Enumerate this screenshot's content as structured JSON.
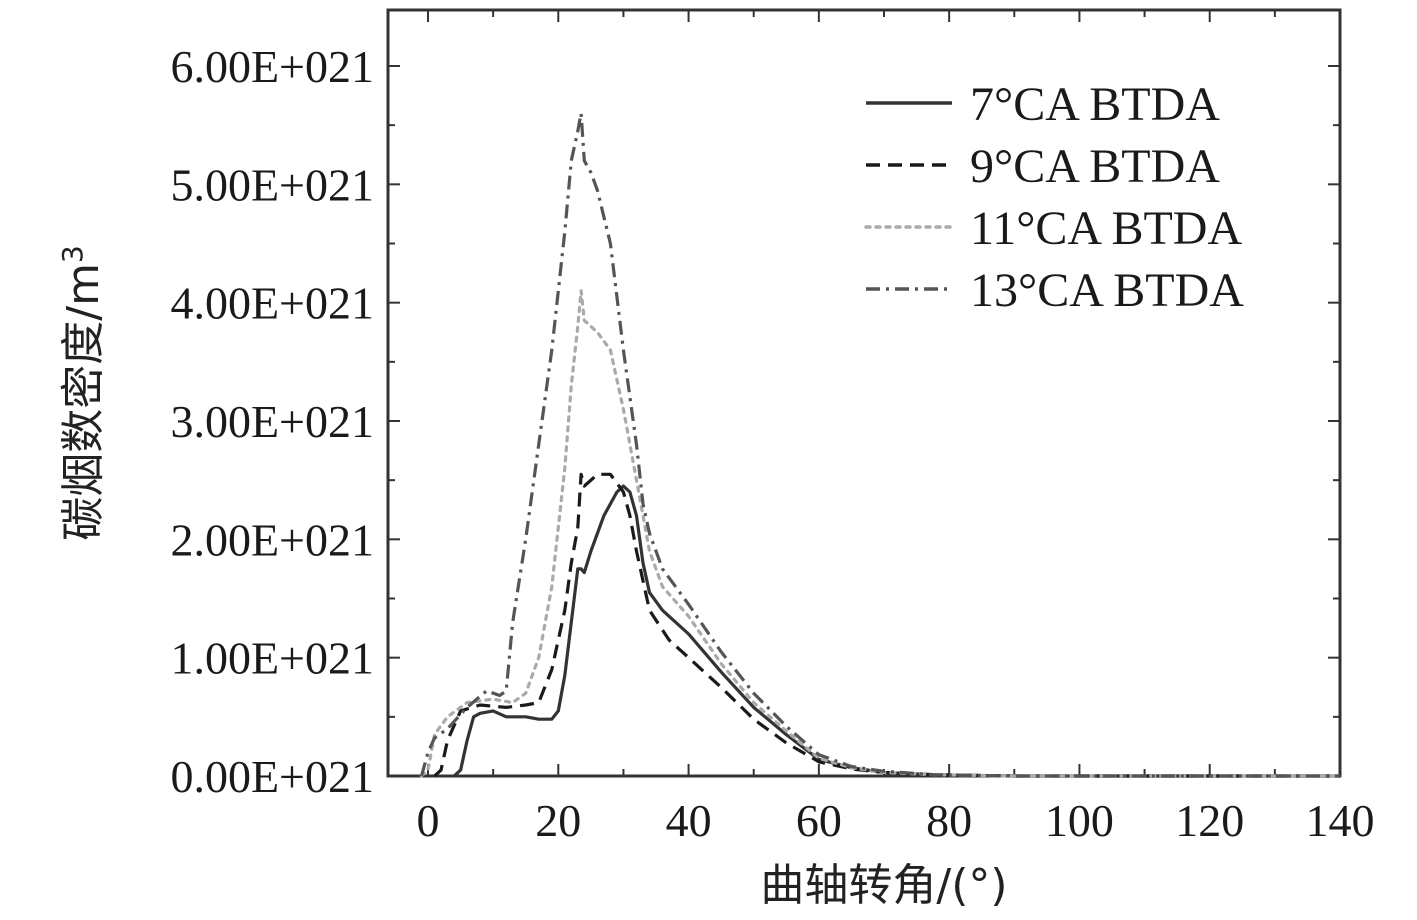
{
  "chart_data": {
    "type": "line",
    "title": "",
    "xlabel": "曲轴转角/(°)",
    "ylabel_main": "碳烟数密度/m",
    "ylabel_sup": "3",
    "xlim": [
      -5,
      140
    ],
    "ylim": [
      0,
      6.5e+21
    ],
    "x_ticks": [
      0,
      20,
      40,
      60,
      80,
      100,
      120,
      140
    ],
    "x_tick_labels": [
      "0",
      "20",
      "40",
      "60",
      "80",
      "100",
      "120",
      "140"
    ],
    "y_ticks": [
      0,
      1e+21,
      2e+21,
      3e+21,
      4e+21,
      5e+21,
      6e+21
    ],
    "y_tick_labels": [
      "0.00E+021",
      "1.00E+021",
      "2.00E+021",
      "3.00E+021",
      "4.00E+021",
      "5.00E+021",
      "6.00E+021"
    ],
    "legend_position": "top-right",
    "series": [
      {
        "name": "7°CA BTDA",
        "color": "#333333",
        "dash": "solid",
        "points": [
          [
            4,
            0
          ],
          [
            5,
            5e+19
          ],
          [
            6,
            3e+20
          ],
          [
            7,
            5e+20
          ],
          [
            8,
            5.3e+20
          ],
          [
            10,
            5.5e+20
          ],
          [
            12,
            5e+20
          ],
          [
            15,
            5e+20
          ],
          [
            17,
            4.8e+20
          ],
          [
            19,
            4.8e+20
          ],
          [
            20,
            5.5e+20
          ],
          [
            21,
            8.5e+20
          ],
          [
            22,
            1.3e+21
          ],
          [
            23,
            1.75e+21
          ],
          [
            23.5,
            1.75e+21
          ],
          [
            24,
            1.72e+21
          ],
          [
            25,
            1.9e+21
          ],
          [
            27,
            2.2e+21
          ],
          [
            29,
            2.4e+21
          ],
          [
            30,
            2.45e+21
          ],
          [
            31,
            2.4e+21
          ],
          [
            32,
            2.2e+21
          ],
          [
            33,
            1.8e+21
          ],
          [
            34,
            1.55e+21
          ],
          [
            36,
            1.4e+21
          ],
          [
            40,
            1.2e+21
          ],
          [
            45,
            8.8e+20
          ],
          [
            50,
            5.8e+20
          ],
          [
            55,
            3.5e+20
          ],
          [
            60,
            1.4e+20
          ],
          [
            65,
            7e+19
          ],
          [
            70,
            3e+19
          ],
          [
            78,
            1e+19
          ],
          [
            90,
            0
          ],
          [
            140,
            0
          ]
        ]
      },
      {
        "name": "9°CA BTDA",
        "color": "#1a1a1a",
        "dash": "dashed",
        "points": [
          [
            1,
            0
          ],
          [
            2,
            5e+19
          ],
          [
            3,
            3e+20
          ],
          [
            5,
            5.5e+20
          ],
          [
            8,
            6e+20
          ],
          [
            12,
            5.8e+20
          ],
          [
            15,
            6e+20
          ],
          [
            17,
            6.2e+20
          ],
          [
            19,
            9e+20
          ],
          [
            21,
            1.4e+21
          ],
          [
            22,
            1.8e+21
          ],
          [
            23,
            2.1e+21
          ],
          [
            23.5,
            2.55e+21
          ],
          [
            24,
            2.45e+21
          ],
          [
            25,
            2.5e+21
          ],
          [
            26,
            2.55e+21
          ],
          [
            28,
            2.55e+21
          ],
          [
            30,
            2.4e+21
          ],
          [
            31,
            2.2e+21
          ],
          [
            32,
            1.9e+21
          ],
          [
            34,
            1.4e+21
          ],
          [
            37,
            1.15e+21
          ],
          [
            40,
            1e+21
          ],
          [
            45,
            7.5e+20
          ],
          [
            50,
            4.8e+20
          ],
          [
            55,
            2.8e+20
          ],
          [
            60,
            1.2e+20
          ],
          [
            65,
            6e+19
          ],
          [
            70,
            3e+19
          ],
          [
            78,
            1e+19
          ],
          [
            90,
            0
          ],
          [
            140,
            0
          ]
        ]
      },
      {
        "name": "11°CA BTDA",
        "color": "#aaaaaa",
        "dash": "dotted",
        "points": [
          [
            -1,
            0
          ],
          [
            0,
            5e+19
          ],
          [
            1,
            3.5e+20
          ],
          [
            3,
            5e+20
          ],
          [
            6,
            6.2e+20
          ],
          [
            10,
            6.5e+20
          ],
          [
            13,
            6.2e+20
          ],
          [
            15,
            7e+20
          ],
          [
            17,
            1e+21
          ],
          [
            19,
            1.6e+21
          ],
          [
            21,
            2.6e+21
          ],
          [
            22,
            3.3e+21
          ],
          [
            23,
            3.8e+21
          ],
          [
            23.5,
            4.1e+21
          ],
          [
            24,
            3.85e+21
          ],
          [
            26,
            3.75e+21
          ],
          [
            28,
            3.6e+21
          ],
          [
            30,
            3.1e+21
          ],
          [
            32,
            2.5e+21
          ],
          [
            34,
            1.9e+21
          ],
          [
            36,
            1.6e+21
          ],
          [
            40,
            1.35e+21
          ],
          [
            45,
            9.5e+20
          ],
          [
            50,
            6.2e+20
          ],
          [
            55,
            3.8e+20
          ],
          [
            60,
            1.5e+20
          ],
          [
            65,
            7e+19
          ],
          [
            70,
            3e+19
          ],
          [
            78,
            1e+19
          ],
          [
            90,
            0
          ],
          [
            140,
            0
          ]
        ]
      },
      {
        "name": "13°CA BTDA",
        "color": "#555555",
        "dash": "dashdot",
        "points": [
          [
            -1,
            0
          ],
          [
            0,
            2e+20
          ],
          [
            1,
            3.2e+20
          ],
          [
            3,
            4e+20
          ],
          [
            6,
            5.8e+20
          ],
          [
            9,
            7.2e+20
          ],
          [
            11,
            6.8e+20
          ],
          [
            12,
            7.2e+20
          ],
          [
            13,
            1.3e+21
          ],
          [
            15,
            2e+21
          ],
          [
            17,
            2.8e+21
          ],
          [
            19,
            3.6e+21
          ],
          [
            21,
            4.6e+21
          ],
          [
            22,
            5.2e+21
          ],
          [
            23,
            5.45e+21
          ],
          [
            23.5,
            5.6e+21
          ],
          [
            24,
            5.2e+21
          ],
          [
            25,
            5.1e+21
          ],
          [
            26,
            4.95e+21
          ],
          [
            28,
            4.5e+21
          ],
          [
            30,
            3.6e+21
          ],
          [
            32,
            2.8e+21
          ],
          [
            33,
            2.3e+21
          ],
          [
            34,
            2.05e+21
          ],
          [
            36,
            1.75e+21
          ],
          [
            40,
            1.45e+21
          ],
          [
            45,
            1.05e+21
          ],
          [
            50,
            7e+20
          ],
          [
            55,
            4.2e+20
          ],
          [
            60,
            1.8e+20
          ],
          [
            65,
            8e+19
          ],
          [
            70,
            4e+19
          ],
          [
            78,
            1e+19
          ],
          [
            90,
            0
          ],
          [
            140,
            0
          ]
        ]
      }
    ]
  }
}
